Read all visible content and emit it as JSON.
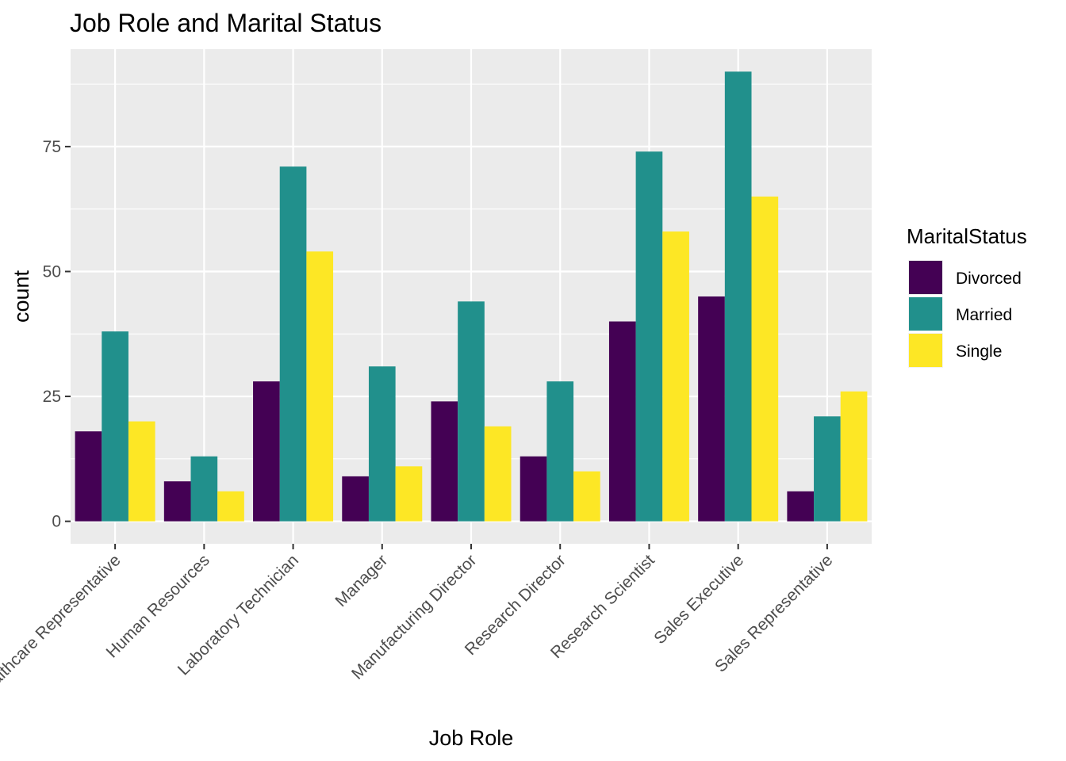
{
  "chart_data": {
    "type": "bar",
    "title": "Job Role and Marital Status",
    "xlabel": "Job Role",
    "ylabel": "count",
    "categories": [
      "Healthcare Representative",
      "Human Resources",
      "Laboratory Technician",
      "Manager",
      "Manufacturing Director",
      "Research Director",
      "Research Scientist",
      "Sales Executive",
      "Sales Representative"
    ],
    "series": [
      {
        "name": "Divorced",
        "color": "#440154",
        "values": [
          18,
          8,
          28,
          9,
          24,
          13,
          40,
          45,
          6
        ]
      },
      {
        "name": "Married",
        "color": "#21908C",
        "values": [
          38,
          13,
          71,
          31,
          44,
          28,
          74,
          90,
          21
        ]
      },
      {
        "name": "Single",
        "color": "#FDE725",
        "values": [
          20,
          6,
          54,
          11,
          19,
          10,
          58,
          65,
          26
        ]
      }
    ],
    "ylim": [
      -4.5,
      94.5
    ],
    "yticks": [
      0,
      25,
      50,
      75
    ],
    "ytick_labels": [
      "0",
      "25",
      "50",
      "75"
    ],
    "grid": true,
    "legend": {
      "title": "MaritalStatus",
      "position": "right"
    }
  }
}
